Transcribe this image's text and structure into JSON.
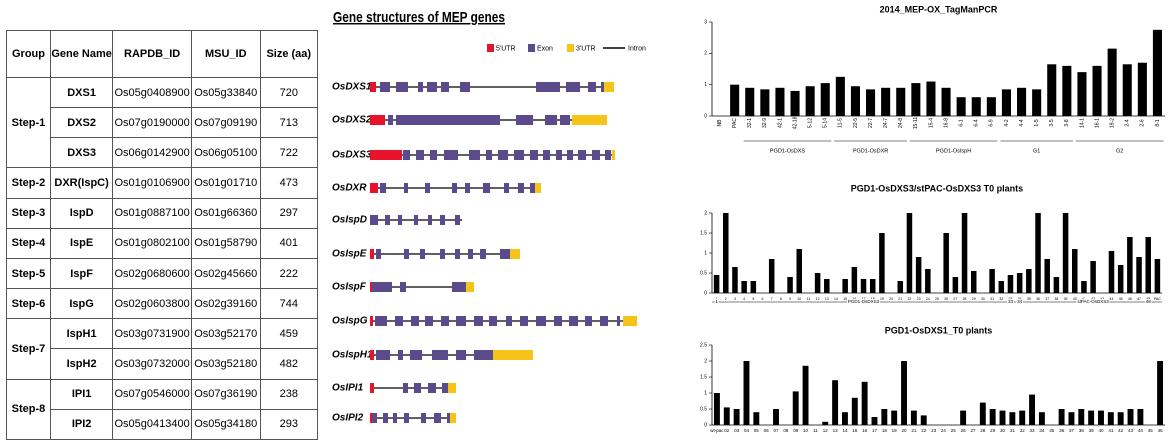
{
  "table": {
    "header": [
      "Group",
      "Gene Name",
      "RAPDB_ID",
      "MSU_ID",
      "Size (aa)"
    ],
    "groups": [
      {
        "name": "Step-1",
        "genes": [
          [
            "DXS1",
            "Os05g0408900",
            "Os05g33840",
            720
          ],
          [
            "DXS2",
            "Os07g0190000",
            "Os07g09190",
            713
          ],
          [
            "DXS3",
            "Os06g0142900",
            "Os06g05100",
            722
          ]
        ]
      },
      {
        "name": "Step-2",
        "genes": [
          [
            "DXR(IspC)",
            "Os01g0106900",
            "Os01g01710",
            473
          ]
        ]
      },
      {
        "name": "Step-3",
        "genes": [
          [
            "IspD",
            "Os01g0887100",
            "Os01g66360",
            297
          ]
        ]
      },
      {
        "name": "Step-4",
        "genes": [
          [
            "IspE",
            "Os01g0802100",
            "Os01g58790",
            401
          ]
        ]
      },
      {
        "name": "Step-5",
        "genes": [
          [
            "IspF",
            "Os02g0680600",
            "Os02g45660",
            222
          ]
        ]
      },
      {
        "name": "Step-6",
        "genes": [
          [
            "IspG",
            "Os02g0603800",
            "Os02g39160",
            744
          ]
        ]
      },
      {
        "name": "Step-7",
        "genes": [
          [
            "IspH1",
            "Os03g0731900",
            "Os03g52170",
            459
          ],
          [
            "IspH2",
            "Os03g0732000",
            "Os03g52180",
            482
          ]
        ]
      },
      {
        "name": "Step-8",
        "genes": [
          [
            "IPI1",
            "Os07g0546000",
            "Os07g36190",
            238
          ],
          [
            "IPI2",
            "Os05g0413400",
            "Os05g34180",
            293
          ]
        ]
      }
    ]
  },
  "gene_structures": {
    "title": "Gene structures of MEP genes",
    "legend": [
      "5'UTR",
      "Exon",
      "3'UTR",
      "Intron"
    ],
    "genes": [
      "OsDXS1",
      "OsDXS2",
      "OsDXS3",
      "OsDXR",
      "OsIspD",
      "OsIspE",
      "OsIspF",
      "OsIspG",
      "OsIspH1",
      "OsIPI1",
      "OsIPI2"
    ]
  },
  "chart_data": [
    {
      "type": "bar",
      "title": "2014_MEP-OX_TagManPCR",
      "color": "#000000",
      "categories": [
        "NB",
        "PAC",
        "32-1",
        "32-9",
        "42-1",
        "42-18",
        "5-12",
        "5-14",
        "11-5",
        "22-5",
        "22-7",
        "24-7",
        "24-8",
        "15-11",
        "15-4",
        "16-8",
        "6-1",
        "6-4",
        "6-9",
        "4-2",
        "4-4",
        "1-5",
        "3-5",
        "3-8",
        "14-1",
        "16-1",
        "19-2",
        "2-4",
        "2-6",
        "8-1"
      ],
      "values": [
        0,
        1.0,
        0.9,
        0.85,
        0.9,
        0.8,
        0.95,
        1.05,
        1.25,
        0.95,
        0.85,
        0.9,
        0.9,
        1.05,
        1.1,
        0.9,
        0.6,
        0.6,
        0.6,
        0.85,
        0.9,
        0.85,
        1.65,
        1.6,
        1.4,
        1.6,
        2.15,
        1.65,
        1.7,
        2.75
      ],
      "ylim": [
        0,
        3
      ],
      "yticks": [
        0,
        1,
        2,
        3
      ],
      "groups": [
        "PGD1-OsDXS",
        "PGD1-OsDXR",
        "PGD1-OsIspH",
        "G1",
        "G2"
      ]
    },
    {
      "type": "bar",
      "title": "PGD1-OsDXS3/stPAC-OsDXS3 T0 plants",
      "color": "#000000",
      "categories": [
        "1",
        "2",
        "3",
        "4",
        "5",
        "6",
        "7",
        "8",
        "9",
        "10",
        "11",
        "12",
        "13",
        "14",
        "15",
        "16",
        "17",
        "18",
        "19",
        "20",
        "21",
        "22",
        "23",
        "24",
        "25",
        "26",
        "27",
        "28",
        "29",
        "30",
        "31",
        "32",
        "33",
        "34",
        "35",
        "36",
        "37",
        "38",
        "39",
        "40",
        "41",
        "42",
        "43",
        "44",
        "45",
        "46",
        "47",
        "48",
        "PAC"
      ],
      "values": [
        0.45,
        2,
        0.65,
        0.3,
        0.3,
        0,
        0.85,
        0,
        0.4,
        1.1,
        0,
        0.5,
        0.35,
        0,
        0.35,
        0.65,
        0.35,
        0.35,
        1.5,
        0,
        0.3,
        2,
        0.9,
        0.6,
        0,
        1.5,
        0.4,
        2,
        0.55,
        0,
        0.6,
        0.3,
        0.45,
        0.5,
        0.6,
        2,
        0.85,
        0.4,
        2,
        1.1,
        0.3,
        0.8,
        0,
        1.05,
        0.7,
        1.4,
        0.9,
        1.4,
        0.85
      ],
      "ylim": [
        0,
        2
      ],
      "yticks": [
        0,
        0.5,
        1,
        1.5,
        2
      ],
      "annotations": [
        "1",
        "PGD1-OsDXS3",
        "33",
        "34",
        "stPAC-OsDXS3",
        "48"
      ]
    },
    {
      "type": "bar",
      "title": "PGD1-OsDXS1_T0 plants",
      "color": "#000000",
      "categories": [
        "wt-pac",
        "02",
        "03",
        "04",
        "05",
        "06",
        "07",
        "08",
        "09",
        "10",
        "11",
        "12",
        "13",
        "14",
        "15",
        "16",
        "17",
        "18",
        "19",
        "20",
        "21",
        "22",
        "23",
        "24",
        "25",
        "26",
        "27",
        "28",
        "29",
        "30",
        "31",
        "32",
        "33",
        "34",
        "35",
        "36",
        "37",
        "38",
        "39",
        "40",
        "41",
        "42",
        "43",
        "44",
        "45",
        "46"
      ],
      "values": [
        1.0,
        0.55,
        0.5,
        2.0,
        0.4,
        0,
        0.5,
        0,
        1.05,
        1.85,
        0,
        0.1,
        1.4,
        0.4,
        0.85,
        1.35,
        0.25,
        0.5,
        0.45,
        2.0,
        0.45,
        0.3,
        0,
        0,
        0,
        0.45,
        0,
        0.7,
        0.5,
        0.45,
        0.4,
        0.45,
        0.95,
        0.4,
        0,
        0.5,
        0.4,
        0.5,
        0.45,
        0.45,
        0.4,
        0.4,
        0.5,
        0.5,
        0,
        2.0
      ],
      "ylim": [
        0,
        2.5
      ],
      "yticks": [
        0,
        0.5,
        1,
        1.5,
        2,
        2.5
      ]
    }
  ]
}
